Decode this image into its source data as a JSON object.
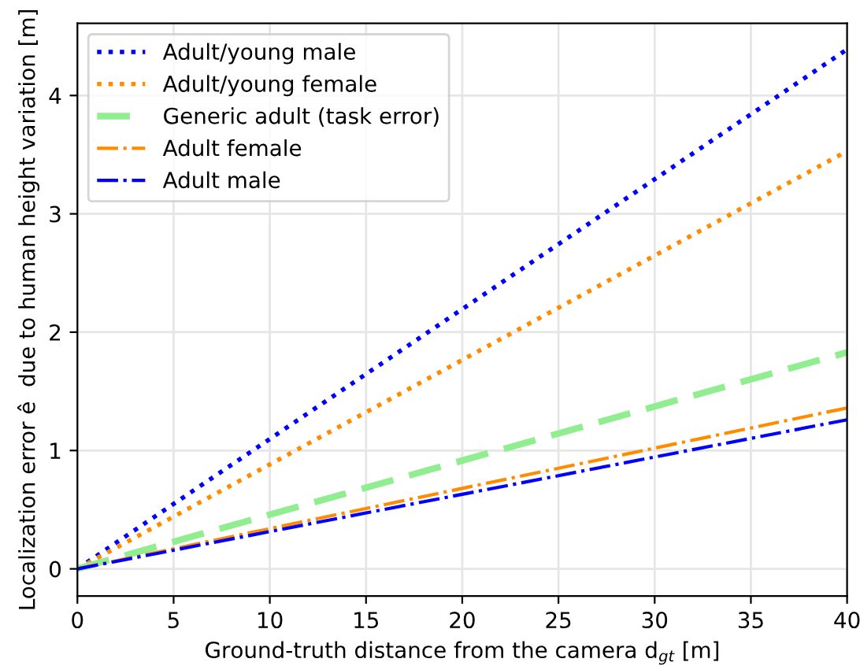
{
  "chart_data": {
    "type": "line",
    "xlabel": "Ground-truth distance from the camera d$_{gt}$ [m]",
    "ylabel": "Localization error ê  due to human height variation [m]",
    "x": [
      0,
      40
    ],
    "series": [
      {
        "name": "Adult/young male",
        "color": "#0000ff",
        "values": [
          0,
          4.39
        ],
        "line_style": "dotted"
      },
      {
        "name": "Adult/young female",
        "color": "#ff8c00",
        "values": [
          0,
          3.53
        ],
        "line_style": "dotted"
      },
      {
        "name": "Generic adult (task error)",
        "color": "#90ee90",
        "values": [
          0,
          1.83
        ],
        "line_style": "dashed"
      },
      {
        "name": "Adult female",
        "color": "#ff8c00",
        "values": [
          0,
          1.36
        ],
        "line_style": "dashdot"
      },
      {
        "name": "Adult male",
        "color": "#0000ff",
        "values": [
          0,
          1.26
        ],
        "line_style": "dashdot"
      }
    ],
    "xlim": [
      0,
      40
    ],
    "xticks": [
      0,
      5,
      10,
      15,
      20,
      25,
      30,
      35,
      40
    ],
    "ylim": [
      -0.23,
      4.61
    ],
    "yticks": [
      0,
      1,
      2,
      3,
      4
    ],
    "grid": true,
    "legend": "top left"
  }
}
